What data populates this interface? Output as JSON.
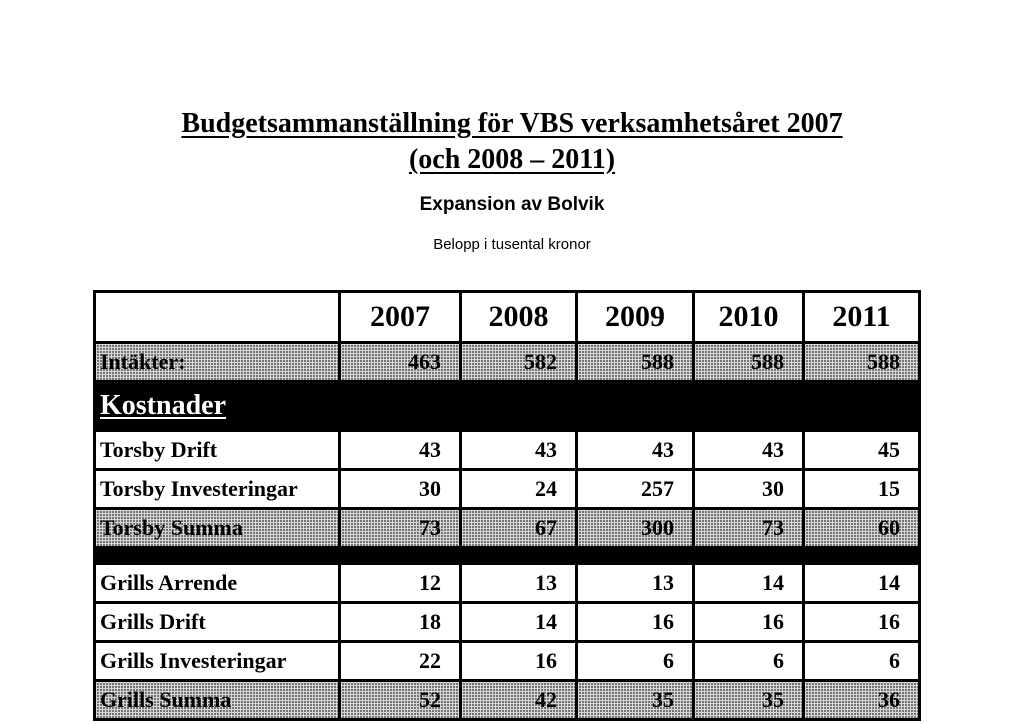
{
  "document": {
    "title_line1": "Budgetsammanställning för VBS verksamhetsåret 2007",
    "title_line2": "(och 2008 – 2011)",
    "subtitle": "Expansion av Bolvik",
    "unit_note": "Belopp i tusental kronor"
  },
  "table": {
    "years": [
      "2007",
      "2008",
      "2009",
      "2010",
      "2011"
    ],
    "intakter": {
      "label": "Intäkter:",
      "values": [
        "463",
        "582",
        "588",
        "588",
        "588"
      ]
    },
    "section_label": "Kostnader",
    "torsby": [
      {
        "label": "Torsby Drift",
        "values": [
          "43",
          "43",
          "43",
          "43",
          "45"
        ]
      },
      {
        "label": "Torsby Investeringar",
        "values": [
          "30",
          "24",
          "257",
          "30",
          "15"
        ]
      }
    ],
    "torsby_sum": {
      "label": "Torsby Summa",
      "values": [
        "73",
        "67",
        "300",
        "73",
        "60"
      ]
    },
    "grills": [
      {
        "label": "Grills Arrende",
        "values": [
          "12",
          "13",
          "13",
          "14",
          "14"
        ]
      },
      {
        "label": "Grills Drift",
        "values": [
          "18",
          "14",
          "16",
          "16",
          "16"
        ]
      },
      {
        "label": "Grills Investeringar",
        "values": [
          "22",
          "16",
          "6",
          "6",
          "6"
        ]
      }
    ],
    "grills_sum": {
      "label": "Grills Summa",
      "values": [
        "52",
        "42",
        "35",
        "35",
        "36"
      ]
    }
  }
}
